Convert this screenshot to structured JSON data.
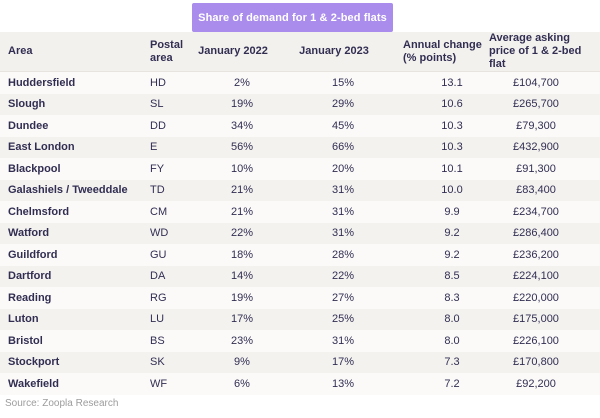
{
  "banner": {
    "label": "Share of demand for 1 & 2-bed flats",
    "bg_color": "#a98cec",
    "text_color": "#ffffff"
  },
  "source": {
    "label": "Source: Zoopla Research"
  },
  "colors": {
    "text": "#322e52",
    "header_bg": "#f3f1ee",
    "row_odd": "#fbfaf8",
    "row_even": "#f3f2ef",
    "accent_purple": "#a98cec",
    "source_gray": "#9c9c9c"
  },
  "chart_data": {
    "type": "table",
    "title": "Share of demand for 1 & 2-bed flats",
    "columns": [
      "Area",
      "Postal area",
      "January 2022",
      "January 2023",
      "Annual change (% points)",
      "Average asking price of 1 & 2-bed flat"
    ],
    "rows": [
      {
        "area": "Huddersfield",
        "postal": "HD",
        "jan_2022": "2%",
        "jan_2023": "15%",
        "annual_change": "13.1",
        "avg_price": "£104,700"
      },
      {
        "area": "Slough",
        "postal": "SL",
        "jan_2022": "19%",
        "jan_2023": "29%",
        "annual_change": "10.6",
        "avg_price": "£265,700"
      },
      {
        "area": "Dundee",
        "postal": "DD",
        "jan_2022": "34%",
        "jan_2023": "45%",
        "annual_change": "10.3",
        "avg_price": "£79,300"
      },
      {
        "area": "East London",
        "postal": "E",
        "jan_2022": "56%",
        "jan_2023": "66%",
        "annual_change": "10.3",
        "avg_price": "£432,900"
      },
      {
        "area": "Blackpool",
        "postal": "FY",
        "jan_2022": "10%",
        "jan_2023": "20%",
        "annual_change": "10.1",
        "avg_price": "£91,300"
      },
      {
        "area": "Galashiels / Tweeddale",
        "postal": "TD",
        "jan_2022": "21%",
        "jan_2023": "31%",
        "annual_change": "10.0",
        "avg_price": "£83,400"
      },
      {
        "area": "Chelmsford",
        "postal": "CM",
        "jan_2022": "21%",
        "jan_2023": "31%",
        "annual_change": "9.9",
        "avg_price": "£234,700"
      },
      {
        "area": "Watford",
        "postal": "WD",
        "jan_2022": "22%",
        "jan_2023": "31%",
        "annual_change": "9.2",
        "avg_price": "£286,400"
      },
      {
        "area": "Guildford",
        "postal": "GU",
        "jan_2022": "18%",
        "jan_2023": "28%",
        "annual_change": "9.2",
        "avg_price": "£236,200"
      },
      {
        "area": "Dartford",
        "postal": "DA",
        "jan_2022": "14%",
        "jan_2023": "22%",
        "annual_change": "8.5",
        "avg_price": "£224,100"
      },
      {
        "area": "Reading",
        "postal": "RG",
        "jan_2022": "19%",
        "jan_2023": "27%",
        "annual_change": "8.3",
        "avg_price": "£220,000"
      },
      {
        "area": "Luton",
        "postal": "LU",
        "jan_2022": "17%",
        "jan_2023": "25%",
        "annual_change": "8.0",
        "avg_price": "£175,000"
      },
      {
        "area": "Bristol",
        "postal": "BS",
        "jan_2022": "23%",
        "jan_2023": "31%",
        "annual_change": "8.0",
        "avg_price": "£226,100"
      },
      {
        "area": "Stockport",
        "postal": "SK",
        "jan_2022": "9%",
        "jan_2023": "17%",
        "annual_change": "7.3",
        "avg_price": "£170,800"
      },
      {
        "area": "Wakefield",
        "postal": "WF",
        "jan_2022": "6%",
        "jan_2023": "13%",
        "annual_change": "7.2",
        "avg_price": "£92,200"
      }
    ]
  }
}
